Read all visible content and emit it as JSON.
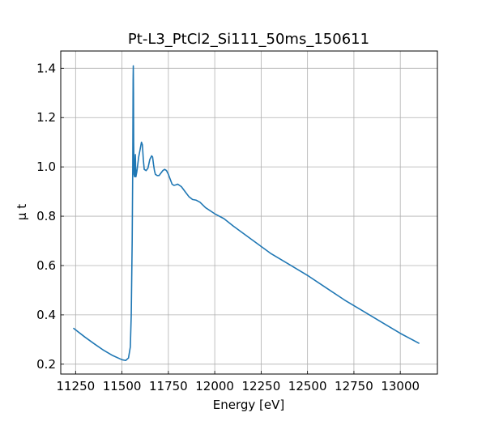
{
  "chart_data": {
    "type": "line",
    "title": "Pt-L3_PtCl2_Si111_50ms_150611",
    "xlabel": "Energy [eV]",
    "ylabel": "μ t",
    "xlim": [
      11170,
      13200
    ],
    "ylim": [
      0.16,
      1.47
    ],
    "xticks": [
      11250,
      11500,
      11750,
      12000,
      12250,
      12500,
      12750,
      13000
    ],
    "yticks": [
      0.2,
      0.4,
      0.6,
      0.8,
      1.0,
      1.2,
      1.4
    ],
    "xtick_labels": [
      "11250",
      "11500",
      "11750",
      "12000",
      "12250",
      "12500",
      "12750",
      "13000"
    ],
    "ytick_labels": [
      "0.2",
      "0.4",
      "0.6",
      "0.8",
      "1.0",
      "1.2",
      "1.4"
    ],
    "grid": true,
    "series": [
      {
        "color": "#1f77b4",
        "x": [
          11240,
          11300,
          11350,
          11400,
          11450,
          11500,
          11520,
          11535,
          11545,
          11550,
          11555,
          11558,
          11560,
          11561,
          11562,
          11563,
          11565,
          11568,
          11572,
          11575,
          11580,
          11590,
          11600,
          11605,
          11610,
          11615,
          11620,
          11630,
          11640,
          11650,
          11660,
          11665,
          11670,
          11675,
          11680,
          11690,
          11700,
          11710,
          11720,
          11730,
          11740,
          11750,
          11760,
          11770,
          11780,
          11790,
          11800,
          11820,
          11840,
          11860,
          11880,
          11900,
          11920,
          11950,
          12000,
          12050,
          12100,
          12200,
          12300,
          12400,
          12500,
          12600,
          12700,
          12800,
          12900,
          13000,
          13100
        ],
        "y": [
          0.345,
          0.31,
          0.283,
          0.257,
          0.235,
          0.218,
          0.215,
          0.225,
          0.27,
          0.4,
          0.7,
          1.0,
          1.35,
          1.41,
          1.3,
          1.1,
          0.97,
          0.96,
          1.05,
          0.96,
          0.98,
          1.04,
          1.08,
          1.1,
          1.09,
          1.03,
          0.99,
          0.985,
          0.995,
          1.03,
          1.045,
          1.04,
          1.01,
          0.985,
          0.97,
          0.965,
          0.965,
          0.975,
          0.985,
          0.99,
          0.985,
          0.97,
          0.95,
          0.93,
          0.925,
          0.927,
          0.93,
          0.92,
          0.9,
          0.88,
          0.868,
          0.865,
          0.857,
          0.835,
          0.81,
          0.79,
          0.76,
          0.705,
          0.65,
          0.605,
          0.56,
          0.51,
          0.46,
          0.415,
          0.37,
          0.325,
          0.285
        ]
      }
    ]
  }
}
